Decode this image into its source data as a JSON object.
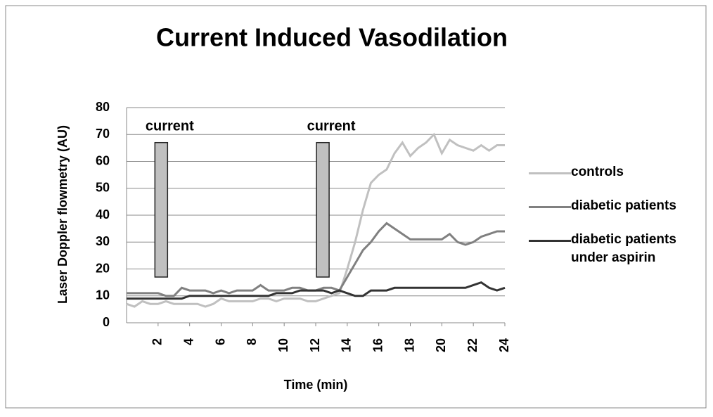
{
  "chart_data": {
    "type": "line",
    "title": "Current Induced Vasodilation",
    "x_label": "Time (min)",
    "y_label": "Laser Doppler flowmetry (AU)",
    "x": [
      0,
      0.5,
      1,
      1.5,
      2,
      2.5,
      3,
      3.5,
      4,
      4.5,
      5,
      5.5,
      6,
      6.5,
      7,
      7.5,
      8,
      8.5,
      9,
      9.5,
      10,
      10.5,
      11,
      11.5,
      12,
      12.5,
      13,
      13.5,
      14,
      14.5,
      15,
      15.5,
      16,
      16.5,
      17,
      17.5,
      18,
      18.5,
      19,
      19.5,
      20,
      20.5,
      21,
      21.5,
      22,
      22.5,
      23,
      23.5,
      24
    ],
    "series": [
      {
        "name": "controls",
        "color": "#c0c0c0",
        "values": [
          7,
          6,
          8,
          7,
          7,
          8,
          7,
          7,
          7,
          7,
          6,
          7,
          9,
          8,
          8,
          8,
          8,
          9,
          9,
          8,
          9,
          9,
          9,
          8,
          8,
          9,
          10,
          11,
          20,
          30,
          42,
          52,
          55,
          57,
          63,
          67,
          62,
          65,
          67,
          70,
          63,
          68,
          66,
          65,
          64,
          66,
          64,
          66,
          66
        ]
      },
      {
        "name": "diabetic patients",
        "color": "#808080",
        "values": [
          11,
          11,
          11,
          11,
          11,
          10,
          10,
          13,
          12,
          12,
          12,
          11,
          12,
          11,
          12,
          12,
          12,
          14,
          12,
          12,
          12,
          13,
          13,
          12,
          12,
          13,
          13,
          12,
          17,
          22,
          27,
          30,
          34,
          37,
          35,
          33,
          31,
          31,
          31,
          31,
          31,
          33,
          30,
          29,
          30,
          32,
          33,
          34,
          34
        ]
      },
      {
        "name": "diabetic  patients under aspirin",
        "color": "#333333",
        "values": [
          9,
          9,
          9,
          9,
          9,
          9,
          9,
          9,
          10,
          10,
          10,
          10,
          10,
          10,
          10,
          10,
          10,
          10,
          10,
          11,
          11,
          11,
          12,
          12,
          12,
          12,
          11,
          12,
          11,
          10,
          10,
          12,
          12,
          12,
          13,
          13,
          13,
          13,
          13,
          13,
          13,
          13,
          13,
          13,
          14,
          15,
          13,
          12,
          13
        ]
      }
    ],
    "annotations": [
      {
        "label": "current",
        "x": 2.2,
        "y0": 17,
        "y1": 67
      },
      {
        "label": "current",
        "x": 12.45,
        "y0": 17,
        "y1": 67
      }
    ],
    "xlim": [
      0,
      24
    ],
    "xticks": [
      2,
      4,
      6,
      8,
      10,
      12,
      14,
      16,
      18,
      20,
      22,
      24
    ],
    "ylim": [
      0,
      80
    ],
    "yticks": [
      0,
      10,
      20,
      30,
      40,
      50,
      60,
      70,
      80
    ],
    "grid": true
  }
}
